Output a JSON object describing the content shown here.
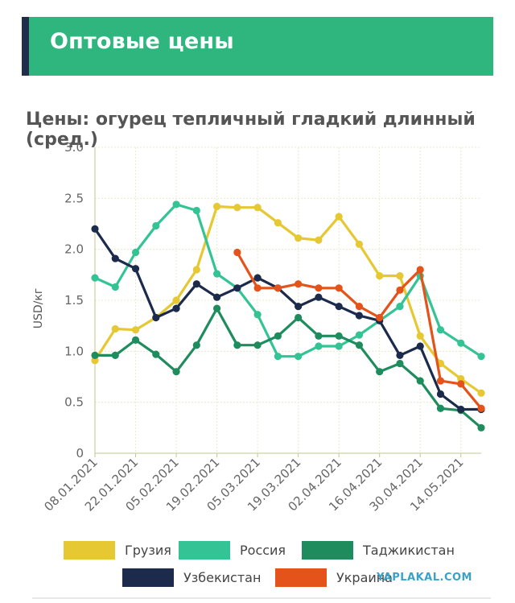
{
  "header": {
    "title": "Оптовые цены"
  },
  "watermark": "YAPLAKAL.COM",
  "chart_data": {
    "type": "line",
    "title": "Цены: огурец тепличный гладкий длинный (сред.)",
    "ylabel": "USD/кг",
    "xlabel": "",
    "ylim": [
      0,
      3.0
    ],
    "yticks": [
      "0",
      "0.5",
      "1.0",
      "1.5",
      "2.0",
      "2.5",
      "3.0"
    ],
    "grid": true,
    "x_ticks": [
      "08.01.2021",
      "22.01.2021",
      "05.02.2021",
      "19.02.2021",
      "05.03.2021",
      "19.03.2021",
      "02.04.2021",
      "16.04.2021",
      "30.04.2021",
      "14.05.2021"
    ],
    "x_count": 20,
    "series": [
      {
        "name": "Грузия",
        "color": "#e5c832",
        "values": [
          0.91,
          1.22,
          1.21,
          1.33,
          1.5,
          1.8,
          2.42,
          2.41,
          2.41,
          2.26,
          2.11,
          2.09,
          2.32,
          2.05,
          1.74,
          1.74,
          1.15,
          0.88,
          0.73,
          0.59
        ]
      },
      {
        "name": "Россия",
        "color": "#34c394",
        "values": [
          1.72,
          1.63,
          1.97,
          2.23,
          2.44,
          2.38,
          1.76,
          1.62,
          1.36,
          0.95,
          0.95,
          1.05,
          1.05,
          1.16,
          1.3,
          1.44,
          1.74,
          1.21,
          1.08,
          0.95
        ]
      },
      {
        "name": "Таджикистан",
        "color": "#1f8c5e",
        "values": [
          0.96,
          0.96,
          1.11,
          0.97,
          0.8,
          1.06,
          1.42,
          1.06,
          1.06,
          1.15,
          1.33,
          1.15,
          1.15,
          1.06,
          0.8,
          0.88,
          0.71,
          0.44,
          0.42,
          0.25
        ]
      },
      {
        "name": "Узбекистан",
        "color": "#1c2a4c",
        "values": [
          2.2,
          1.91,
          1.81,
          1.33,
          1.42,
          1.66,
          1.53,
          1.62,
          1.72,
          1.62,
          1.44,
          1.53,
          1.44,
          1.35,
          1.3,
          0.96,
          1.05,
          0.58,
          0.43,
          0.43
        ]
      },
      {
        "name": "Украина",
        "color": "#e3531a",
        "values": [
          null,
          null,
          null,
          null,
          null,
          null,
          null,
          1.97,
          1.62,
          1.62,
          1.66,
          1.62,
          1.62,
          1.44,
          1.33,
          1.6,
          1.8,
          0.71,
          0.68,
          0.44
        ]
      }
    ]
  }
}
